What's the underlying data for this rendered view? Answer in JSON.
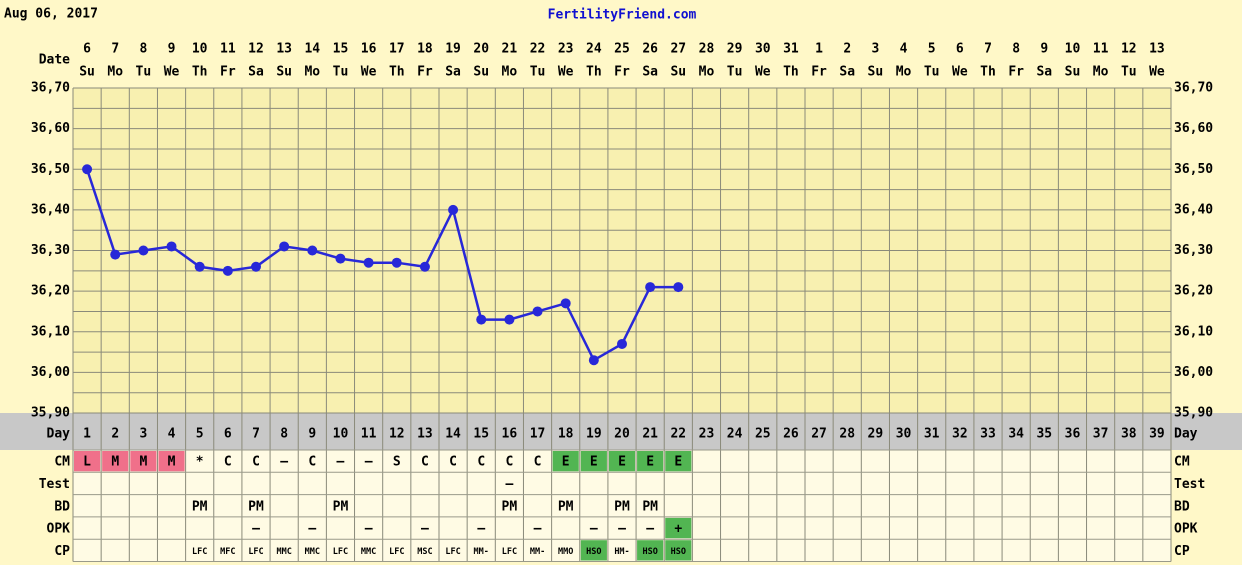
{
  "header": {
    "date": "Aug 06, 2017",
    "site": "FertilityFriend.com"
  },
  "chart_data": {
    "type": "line",
    "date_label": "Date",
    "categories": [
      "6",
      "7",
      "8",
      "9",
      "10",
      "11",
      "12",
      "13",
      "14",
      "15",
      "16",
      "17",
      "18",
      "19",
      "20",
      "21",
      "22",
      "23",
      "24",
      "25",
      "26",
      "27",
      "28",
      "29",
      "30",
      "31",
      "1",
      "2",
      "3",
      "4",
      "5",
      "6",
      "7",
      "8",
      "9",
      "10",
      "11",
      "12",
      "13"
    ],
    "weekdays": [
      "Su",
      "Mo",
      "Tu",
      "We",
      "Th",
      "Fr",
      "Sa",
      "Su",
      "Mo",
      "Tu",
      "We",
      "Th",
      "Fr",
      "Sa",
      "Su",
      "Mo",
      "Tu",
      "We",
      "Th",
      "Fr",
      "Sa",
      "Su",
      "Mo",
      "Tu",
      "We",
      "Th",
      "Fr",
      "Sa",
      "Su",
      "Mo",
      "Tu",
      "We",
      "Th",
      "Fr",
      "Sa",
      "Su",
      "Mo",
      "Tu",
      "We"
    ],
    "values": [
      36.5,
      36.29,
      36.3,
      36.31,
      36.26,
      36.25,
      36.26,
      36.31,
      36.3,
      36.28,
      36.27,
      36.27,
      36.26,
      36.4,
      36.13,
      36.13,
      36.15,
      36.17,
      36.03,
      36.07,
      36.21,
      36.21,
      null,
      null,
      null,
      null,
      null,
      null,
      null,
      null,
      null,
      null,
      null,
      null,
      null,
      null,
      null,
      null,
      null
    ],
    "color": "#2828d8",
    "ylim": [
      35.9,
      36.7
    ],
    "yticks": [
      {
        "value": 35.9,
        "label": "35,90"
      },
      {
        "value": 36.0,
        "label": "36,00"
      },
      {
        "value": 36.1,
        "label": "36,10"
      },
      {
        "value": 36.2,
        "label": "36,20"
      },
      {
        "value": 36.3,
        "label": "36,30"
      },
      {
        "value": 36.4,
        "label": "36,40"
      },
      {
        "value": 36.5,
        "label": "36,50"
      },
      {
        "value": 36.6,
        "label": "36,60"
      },
      {
        "value": 36.7,
        "label": "36,70"
      }
    ],
    "grid": true,
    "ygrid": [
      35.95,
      36.05,
      36.15,
      36.25,
      36.35,
      36.45,
      36.55,
      36.65
    ],
    "day_label": "Day",
    "days": [
      1,
      2,
      3,
      4,
      5,
      6,
      7,
      8,
      9,
      10,
      11,
      12,
      13,
      14,
      15,
      16,
      17,
      18,
      19,
      20,
      21,
      22,
      23,
      24,
      25,
      26,
      27,
      28,
      29,
      30,
      31,
      32,
      33,
      34,
      35,
      36,
      37,
      38,
      39
    ],
    "cell_colors": {
      "L": "#f0708a",
      "M": "#f0708a",
      "E": "#52b552",
      "HSO": "#52b552",
      "+": "#52b552"
    },
    "rows": [
      {
        "label": "CM",
        "cells": [
          "L",
          "M",
          "M",
          "M",
          "*",
          "C",
          "C",
          "–",
          "C",
          "–",
          "–",
          "S",
          "C",
          "C",
          "C",
          "C",
          "C",
          "E",
          "E",
          "E",
          "E",
          "E",
          null,
          null,
          null,
          null,
          null,
          null,
          null,
          null,
          null,
          null,
          null,
          null,
          null,
          null,
          null,
          null,
          null
        ]
      },
      {
        "label": "Test",
        "cells": [
          null,
          null,
          null,
          null,
          null,
          null,
          null,
          null,
          null,
          null,
          null,
          null,
          null,
          null,
          null,
          "–",
          null,
          null,
          null,
          null,
          null,
          null,
          null,
          null,
          null,
          null,
          null,
          null,
          null,
          null,
          null,
          null,
          null,
          null,
          null,
          null,
          null,
          null,
          null
        ]
      },
      {
        "label": "BD",
        "cells": [
          null,
          null,
          null,
          null,
          "PM",
          null,
          "PM",
          null,
          null,
          "PM",
          null,
          null,
          null,
          null,
          null,
          "PM",
          null,
          "PM",
          null,
          "PM",
          "PM",
          null,
          null,
          null,
          null,
          null,
          null,
          null,
          null,
          null,
          null,
          null,
          null,
          null,
          null,
          null,
          null,
          null,
          null
        ]
      },
      {
        "label": "OPK",
        "cells": [
          null,
          null,
          null,
          null,
          null,
          null,
          "–",
          null,
          "–",
          null,
          "–",
          null,
          "–",
          null,
          "–",
          null,
          "–",
          null,
          "–",
          "–",
          "–",
          "+",
          null,
          null,
          null,
          null,
          null,
          null,
          null,
          null,
          null,
          null,
          null,
          null,
          null,
          null,
          null,
          null,
          null
        ]
      },
      {
        "label": "CP",
        "cells": [
          null,
          null,
          null,
          null,
          "LFC",
          "MFC",
          "LFC",
          "MMC",
          "MMC",
          "LFC",
          "MMC",
          "LFC",
          "MSC",
          "LFC",
          "MM-",
          "LFC",
          "MM-",
          "MMO",
          "HSO",
          "HM-",
          "HSO",
          "HSO",
          null,
          null,
          null,
          null,
          null,
          null,
          null,
          null,
          null,
          null,
          null,
          null,
          null,
          null,
          null,
          null,
          null
        ]
      }
    ]
  }
}
